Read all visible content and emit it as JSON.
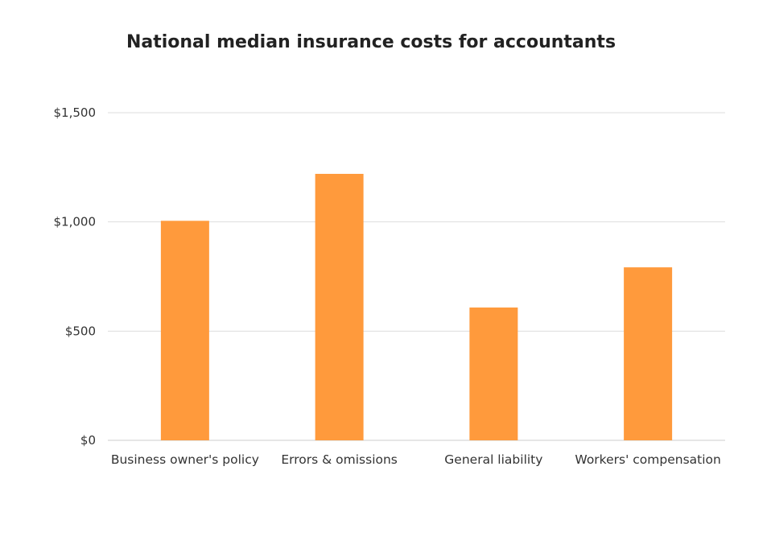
{
  "chart_data": {
    "type": "bar",
    "title": "National median insurance costs for accountants",
    "categories": [
      "Business owner's policy",
      "Errors & omissions",
      "General liability",
      "Workers' compensation"
    ],
    "values": [
      1005,
      1220,
      608,
      792
    ],
    "ylim": [
      0,
      1500
    ],
    "yticks": [
      0,
      500,
      1000,
      1500
    ],
    "ytick_labels": [
      "$0",
      "$500",
      "$1,000",
      "$1,500"
    ],
    "xlabel": "",
    "ylabel": "",
    "grid": true,
    "legend": "none",
    "bar_color": "#FF9A3C",
    "grid_color": "#DDDDDD"
  }
}
